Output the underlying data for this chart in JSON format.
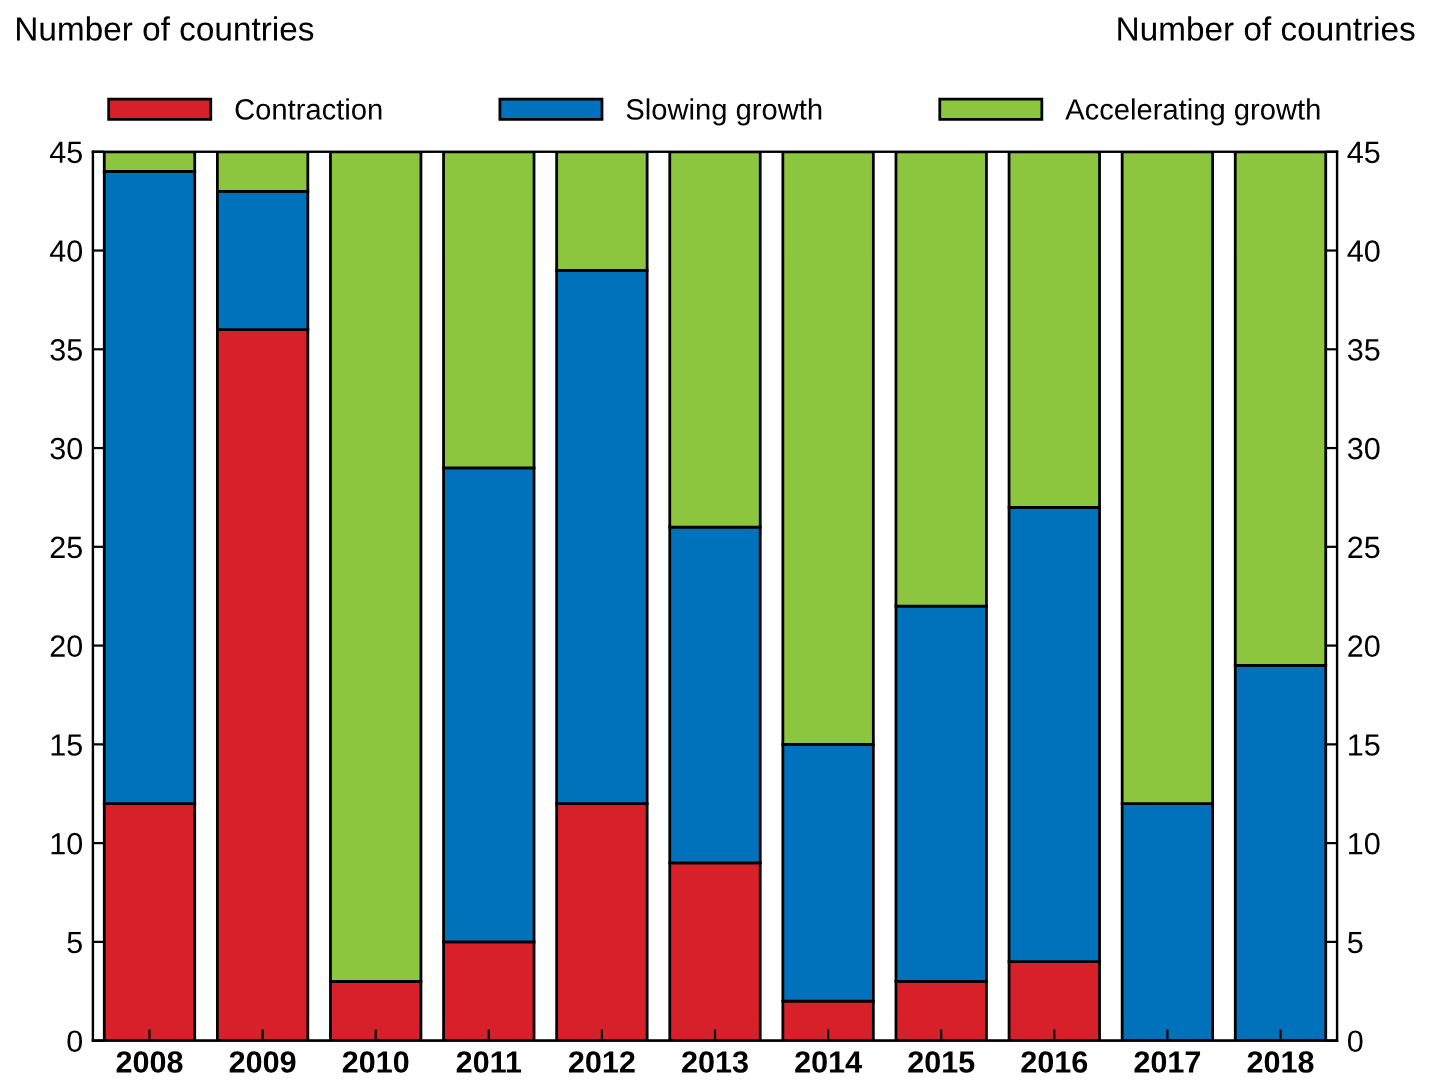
{
  "chart_data": {
    "type": "bar",
    "stacked": true,
    "ylabel": "Number of countries",
    "y2label": "Number of countries",
    "categories": [
      "2008",
      "2009",
      "2010",
      "2011",
      "2012",
      "2013",
      "2014",
      "2015",
      "2016",
      "2017",
      "2018"
    ],
    "series": [
      {
        "name": "Contraction",
        "color": "#d7202a",
        "values": [
          12,
          36,
          3,
          5,
          12,
          9,
          2,
          3,
          4,
          0,
          0
        ]
      },
      {
        "name": "Slowing growth",
        "color": "#0072bc",
        "values": [
          32,
          7,
          0,
          24,
          27,
          17,
          13,
          19,
          23,
          12,
          19
        ]
      },
      {
        "name": "Accelerating growth",
        "color": "#8cc63f",
        "values": [
          1,
          2,
          42,
          16,
          6,
          19,
          30,
          23,
          18,
          33,
          26
        ]
      }
    ],
    "ylim": [
      0,
      45
    ],
    "yticks": [
      0,
      5,
      10,
      15,
      20,
      25,
      30,
      35,
      40,
      45
    ],
    "y2lim": [
      0,
      45
    ],
    "y2ticks": [
      0,
      5,
      10,
      15,
      20,
      25,
      30,
      35,
      40,
      45
    ],
    "grid": false,
    "legend": "top"
  }
}
